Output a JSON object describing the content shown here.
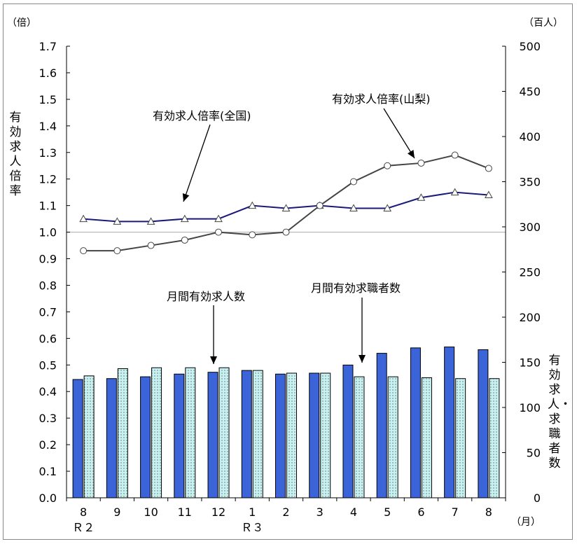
{
  "chart_data": {
    "type": "bar",
    "units": {
      "left": "（倍）",
      "right": "（百人）",
      "month": "（月）"
    },
    "left_axis": {
      "label": "有効求人倍率",
      "ylim": [
        0.0,
        1.7
      ],
      "ticks": [
        "0.0",
        "0.1",
        "0.2",
        "0.3",
        "0.4",
        "0.5",
        "0.6",
        "0.7",
        "0.8",
        "0.9",
        "1.0",
        "1.1",
        "1.2",
        "1.3",
        "1.4",
        "1.5",
        "1.6",
        "1.7"
      ]
    },
    "right_axis": {
      "label": "有効求人・求職者数",
      "ylim": [
        0,
        500
      ],
      "ticks": [
        "0",
        "50",
        "100",
        "150",
        "200",
        "250",
        "300",
        "350",
        "400",
        "450",
        "500"
      ]
    },
    "categories": [
      "8",
      "9",
      "10",
      "11",
      "12",
      "1",
      "2",
      "3",
      "4",
      "5",
      "6",
      "7",
      "8"
    ],
    "year_labels": [
      {
        "text": "Ｒ２",
        "at_index": 0
      },
      {
        "text": "Ｒ３",
        "at_index": 5
      }
    ],
    "reference_line": 1.0,
    "bar_series": [
      {
        "name": "月間有効求人数",
        "axis": "right",
        "color": "#3a64d8",
        "values": [
          131,
          132,
          134,
          137,
          139,
          141,
          137,
          138,
          147,
          160,
          166,
          167,
          164
        ]
      },
      {
        "name": "月間有効求職者数",
        "axis": "right",
        "color": "#c8f2f2",
        "values": [
          135,
          143,
          144,
          144,
          144,
          141,
          138,
          138,
          134,
          134,
          133,
          132,
          132
        ]
      }
    ],
    "line_series": [
      {
        "name": "有効求人倍率(全国)",
        "axis": "left",
        "marker": "triangle",
        "color": "#1a1a7a",
        "values": [
          1.05,
          1.04,
          1.04,
          1.05,
          1.05,
          1.1,
          1.09,
          1.1,
          1.09,
          1.09,
          1.13,
          1.15,
          1.14
        ]
      },
      {
        "name": "有効求人倍率(山梨)",
        "axis": "left",
        "marker": "circle",
        "color": "#444444",
        "values": [
          0.93,
          0.93,
          0.95,
          0.97,
          1.0,
          0.99,
          1.0,
          1.1,
          1.19,
          1.25,
          1.26,
          1.29,
          1.24
        ]
      }
    ],
    "grid": false
  }
}
